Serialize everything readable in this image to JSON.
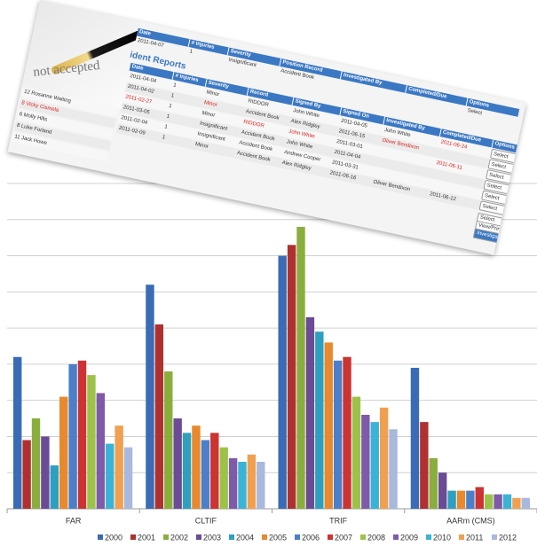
{
  "chart_data": {
    "type": "bar",
    "categories": [
      "FAR",
      "CLTIF",
      "TRIF",
      "AARm (CMS)"
    ],
    "ylim": [
      0,
      9
    ],
    "yticks": [
      0,
      1,
      2,
      3,
      4,
      5,
      6,
      7,
      8,
      9
    ],
    "grid": true,
    "legend": "bottom",
    "series": [
      {
        "name": "2000",
        "color": "#3a6bb5",
        "values": [
          4.2,
          6.2,
          7.0,
          3.9
        ]
      },
      {
        "name": "2001",
        "color": "#b03030",
        "values": [
          1.9,
          5.1,
          7.3,
          2.4
        ]
      },
      {
        "name": "2002",
        "color": "#8aae3e",
        "values": [
          2.5,
          3.8,
          7.8,
          1.4
        ]
      },
      {
        "name": "2003",
        "color": "#6b4a96",
        "values": [
          2.0,
          2.5,
          5.3,
          1.0
        ]
      },
      {
        "name": "2004",
        "color": "#2e9fbf",
        "values": [
          1.2,
          2.1,
          4.9,
          0.5
        ]
      },
      {
        "name": "2005",
        "color": "#e8892d",
        "values": [
          3.1,
          2.3,
          4.6,
          0.5
        ]
      },
      {
        "name": "2006",
        "color": "#4b7fc9",
        "values": [
          4.0,
          1.9,
          4.1,
          0.5
        ]
      },
      {
        "name": "2007",
        "color": "#cc3333",
        "values": [
          4.1,
          2.1,
          4.2,
          0.6
        ]
      },
      {
        "name": "2008",
        "color": "#9dc24a",
        "values": [
          3.7,
          1.7,
          3.1,
          0.4
        ]
      },
      {
        "name": "2009",
        "color": "#7e5aa8",
        "values": [
          3.2,
          1.4,
          2.6,
          0.4
        ]
      },
      {
        "name": "2010",
        "color": "#3bb3d6",
        "values": [
          1.8,
          1.3,
          2.4,
          0.4
        ]
      },
      {
        "name": "2011",
        "color": "#f0a050",
        "values": [
          2.3,
          1.5,
          2.8,
          0.3
        ]
      },
      {
        "name": "2012",
        "color": "#a9b8dd",
        "values": [
          1.7,
          1.3,
          2.2,
          0.3
        ]
      }
    ]
  },
  "screenshot": {
    "pen_caption": "not accepted",
    "top_headers": [
      "Date",
      "# Injuries",
      "Severity",
      "Position Record",
      "Investigated By",
      "Completed/Due",
      "Options"
    ],
    "top_row": [
      "2011-04-07",
      "1",
      "Insignificant",
      "Accident Book",
      "",
      "",
      "Select"
    ],
    "heading": "ident Reports",
    "people": [
      "12  Rosanne Waiting",
      "8  Vicky Cismela",
      "6  Molly Hills",
      "8  Luke Forland",
      "11  Jack Howe"
    ],
    "headers": [
      "Date",
      "# Injuries",
      "Severity",
      "Record",
      "Signed By",
      "Signed On",
      "Investigated By",
      "Completed/Due",
      "Options"
    ],
    "rows": [
      [
        "2011-04-04",
        "1",
        "Minor",
        "RIDDOR",
        "John White",
        "2011-04-05",
        "John White",
        "2011-06-24",
        "Select"
      ],
      [
        "2011-04-02",
        "1",
        "Minor",
        "Accident Book",
        "Alex Ridgley",
        "2011-06-15",
        "Oliver Bendixon",
        "",
        "Select"
      ],
      [
        "2011-02-27",
        "1",
        "Minor",
        "RIDDOR",
        "John White",
        "2011-03-01",
        "",
        "2011-06-11",
        "Select"
      ],
      [
        "2011-03-05",
        "1",
        "Insignificant",
        "Accident Book",
        "John White",
        "2011-04-04",
        "",
        "",
        "Select"
      ],
      [
        "2011-02-04",
        "1",
        "Insignificant",
        "Accident Book",
        "Andrew Cooper",
        "2011-03-31",
        "",
        "",
        "Select"
      ],
      [
        "2011-02-09",
        "1",
        "Minor",
        "Accident Book",
        "Alex Ridgley",
        "2011-06-16",
        "Oliver Bendixon",
        "2011-06-12",
        "Select"
      ]
    ],
    "dropdown": [
      "Select",
      "View/Print Details",
      "Investigate"
    ]
  }
}
